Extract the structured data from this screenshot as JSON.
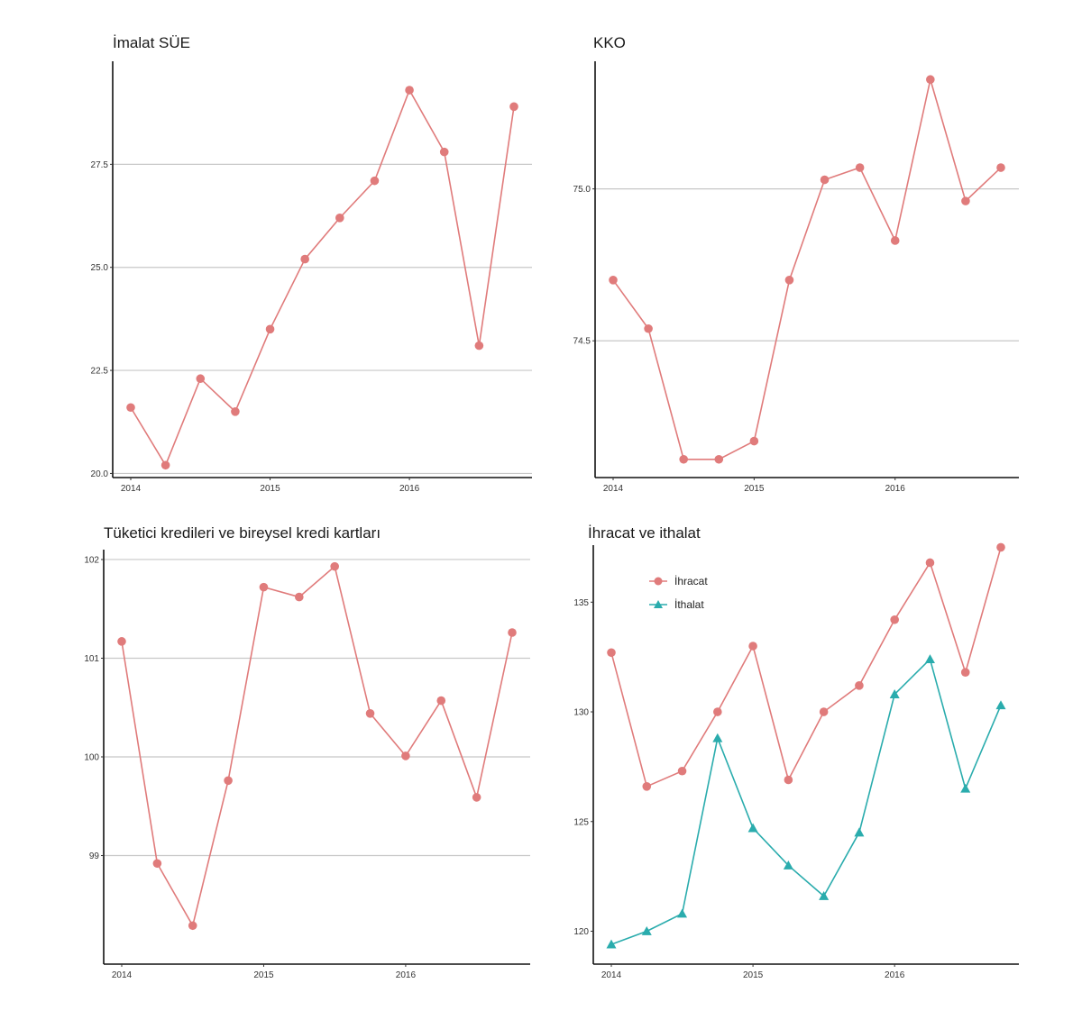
{
  "chart_data": [
    {
      "type": "line",
      "title": "İmalat SÜE",
      "x_ticks": [
        "2014",
        "2015",
        "2016"
      ],
      "y_ticks": [
        "20.0",
        "22.5",
        "25.0",
        "27.5"
      ],
      "ylim": [
        19.9,
        30.0
      ],
      "grid": "horizontal",
      "series": [
        {
          "name": "",
          "color": "#E07B7B",
          "marker": "circle",
          "x": [
            2014.0,
            2014.25,
            2014.5,
            2014.75,
            2015.0,
            2015.25,
            2015.5,
            2015.75,
            2016.0,
            2016.25,
            2016.5,
            2016.75
          ],
          "y": [
            21.6,
            20.2,
            22.3,
            21.5,
            23.5,
            25.2,
            26.2,
            27.1,
            29.3,
            27.8,
            23.1,
            28.9
          ]
        }
      ]
    },
    {
      "type": "line",
      "title": "KKO",
      "x_ticks": [
        "2014",
        "2015",
        "2016"
      ],
      "y_ticks": [
        "74.5",
        "75.0"
      ],
      "ylim": [
        74.05,
        75.42
      ],
      "grid": "horizontal",
      "series": [
        {
          "name": "",
          "color": "#E07B7B",
          "marker": "circle",
          "x": [
            2014.0,
            2014.25,
            2014.5,
            2014.75,
            2015.0,
            2015.25,
            2015.5,
            2015.75,
            2016.0,
            2016.25,
            2016.5,
            2016.75
          ],
          "y": [
            74.7,
            74.54,
            74.11,
            74.11,
            74.17,
            74.7,
            75.03,
            75.07,
            74.83,
            75.36,
            74.96,
            75.07
          ]
        }
      ]
    },
    {
      "type": "line",
      "title": "Tüketici kredileri ve bireysel kredi kartları",
      "x_ticks": [
        "2014",
        "2015",
        "2016"
      ],
      "y_ticks": [
        "99",
        "100",
        "101",
        "102"
      ],
      "ylim": [
        97.9,
        102.1
      ],
      "grid": "horizontal",
      "series": [
        {
          "name": "",
          "color": "#E07B7B",
          "marker": "circle",
          "x": [
            2014.0,
            2014.25,
            2014.5,
            2014.75,
            2015.0,
            2015.25,
            2015.5,
            2015.75,
            2016.0,
            2016.25,
            2016.5,
            2016.75
          ],
          "y": [
            101.17,
            98.92,
            98.29,
            99.76,
            101.72,
            101.62,
            101.93,
            100.44,
            100.01,
            100.57,
            99.59,
            101.26
          ]
        }
      ]
    },
    {
      "type": "line",
      "title": "İhracat ve ithalat",
      "x_ticks": [
        "2014",
        "2015",
        "2016"
      ],
      "y_ticks": [
        "120",
        "125",
        "130",
        "135"
      ],
      "ylim": [
        118.5,
        137.6
      ],
      "grid": "none",
      "legend": "top-left",
      "series": [
        {
          "name": "İhracat",
          "color": "#E07B7B",
          "marker": "circle",
          "x": [
            2014.0,
            2014.25,
            2014.5,
            2014.75,
            2015.0,
            2015.25,
            2015.5,
            2015.75,
            2016.0,
            2016.25,
            2016.5,
            2016.75
          ],
          "y": [
            132.7,
            126.6,
            127.3,
            130.0,
            133.0,
            126.9,
            130.0,
            131.2,
            134.2,
            136.8,
            131.8,
            137.5
          ]
        },
        {
          "name": "İthalat",
          "color": "#2AACAD",
          "marker": "triangle",
          "x": [
            2014.0,
            2014.25,
            2014.5,
            2014.75,
            2015.0,
            2015.25,
            2015.5,
            2015.75,
            2016.0,
            2016.25,
            2016.5,
            2016.75
          ],
          "y": [
            119.4,
            120.0,
            120.8,
            128.8,
            124.7,
            123.0,
            121.6,
            124.5,
            130.8,
            132.4,
            126.5,
            130.3
          ]
        }
      ]
    }
  ]
}
